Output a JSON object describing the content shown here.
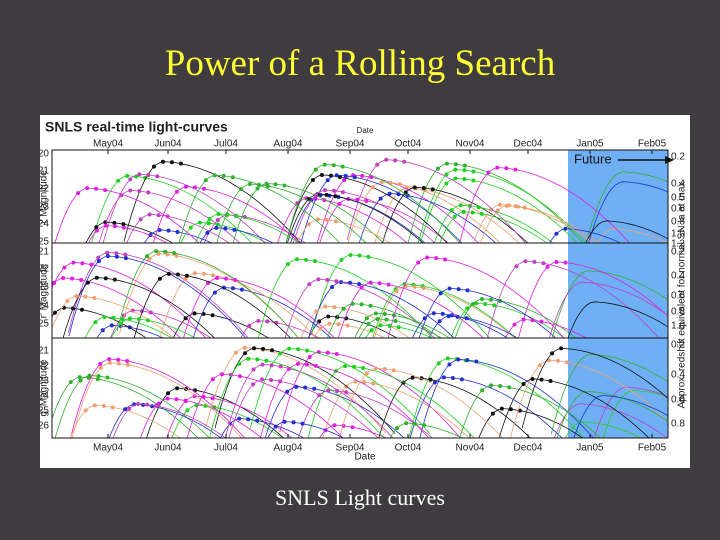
{
  "slide": {
    "title": "Power of a Rolling Search",
    "caption": "SNLS Light curves"
  },
  "figure": {
    "title": "SNLS real-time light-curves",
    "x_label": "Date",
    "months": [
      "May04",
      "Jun04",
      "Jul04",
      "Aug04",
      "Sep04",
      "Oct04",
      "Nov04",
      "Dec04",
      "Jan05",
      "Feb05"
    ],
    "future_label": "Future",
    "right_label": "Approx. redshift equivalent for normal SN Ia at max",
    "panels": [
      {
        "y_label": "i' Magnitude",
        "left_ticks": [
          "20",
          "21",
          "22",
          "23",
          "24",
          "25"
        ],
        "right_ticks": [
          "0.2",
          "0.4",
          "0.5",
          "0.6",
          "0.8",
          "1.0",
          "1.2"
        ]
      },
      {
        "y_label": "r' Magnitude",
        "left_ticks": [
          "21",
          "22",
          "23",
          "24",
          "25"
        ],
        "right_ticks": [
          "0.2",
          "0.4",
          "0.6",
          "0.8",
          "1.0"
        ]
      },
      {
        "y_label": "g' Magnitude",
        "left_ticks": [
          "21",
          "22",
          "23",
          "24",
          "25",
          "26"
        ],
        "right_ticks": [
          "0.2",
          "0.4",
          "0.6",
          "0.8"
        ]
      }
    ]
  }
}
